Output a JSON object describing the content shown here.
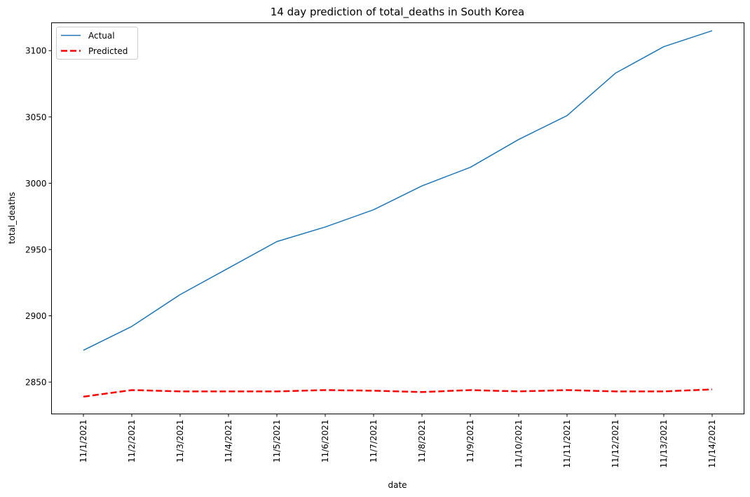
{
  "chart_data": {
    "type": "line",
    "title": "14 day prediction of total_deaths in South Korea",
    "xlabel": "date",
    "ylabel": "total_deaths",
    "categories": [
      "11/1/2021",
      "11/2/2021",
      "11/3/2021",
      "11/4/2021",
      "11/5/2021",
      "11/6/2021",
      "11/7/2021",
      "11/8/2021",
      "11/9/2021",
      "11/10/2021",
      "11/11/2021",
      "11/12/2021",
      "11/13/2021",
      "11/14/2021"
    ],
    "yticks": [
      2850,
      2900,
      2950,
      3000,
      3050,
      3100
    ],
    "ylim": [
      2826,
      3121
    ],
    "grid": false,
    "legend": "top-left",
    "series": [
      {
        "name": "Actual",
        "color": "#1f77b4",
        "style": "solid",
        "values": [
          2874,
          2892,
          2916,
          2936,
          2956,
          2967,
          2980,
          2998,
          3012,
          3033,
          3051,
          3083,
          3103,
          3115
        ]
      },
      {
        "name": "Predicted",
        "color": "#ff0000",
        "style": "dashed",
        "values": [
          2839,
          2844,
          2843,
          2843,
          2843,
          2844,
          2843.5,
          2842.5,
          2844,
          2843,
          2844,
          2843,
          2843,
          2844.5
        ]
      }
    ]
  }
}
